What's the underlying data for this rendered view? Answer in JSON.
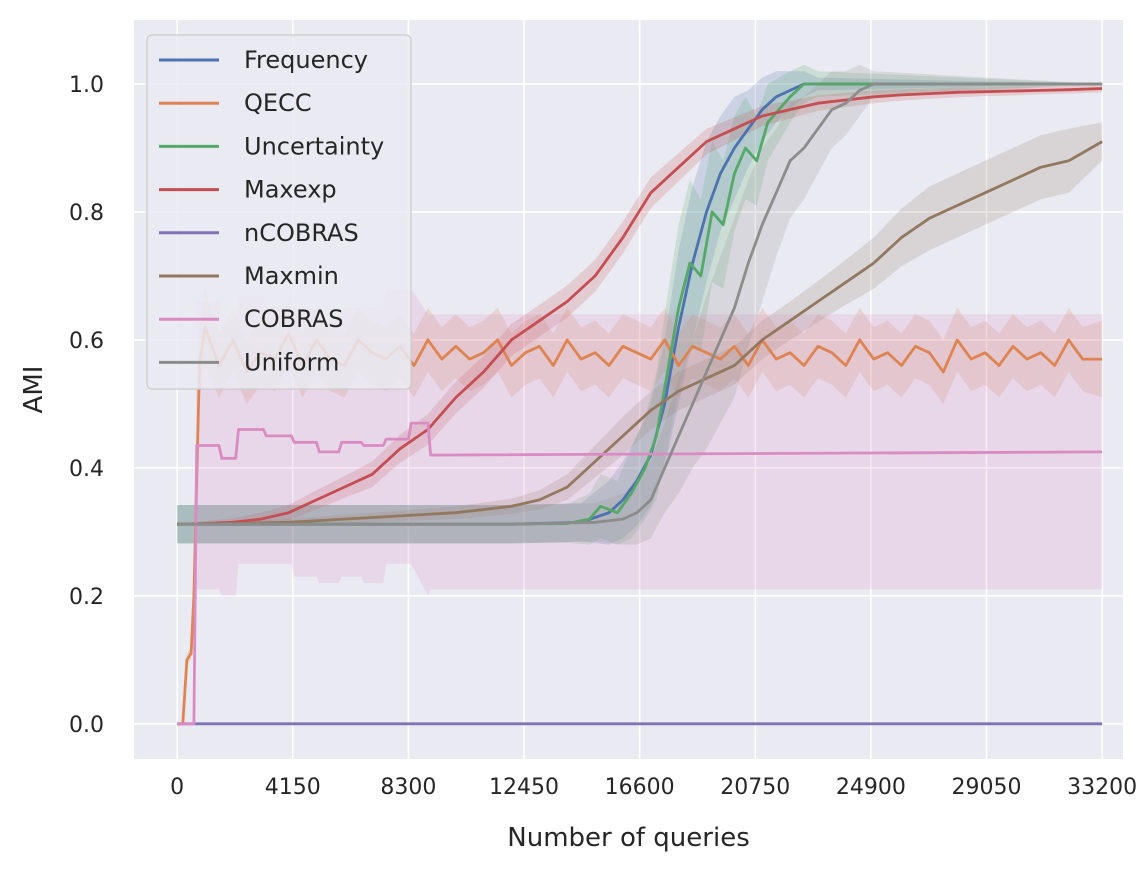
{
  "chart_data": {
    "type": "line",
    "title": "",
    "xlabel": "Number of queries",
    "ylabel": "AMI",
    "xlim": [
      -1550,
      33950
    ],
    "ylim": [
      -0.055,
      1.1
    ],
    "x_ticks": [
      0,
      4150,
      8300,
      12450,
      16600,
      20750,
      24900,
      29050,
      33200
    ],
    "y_ticks": [
      0.0,
      0.2,
      0.4,
      0.6,
      0.8,
      1.0
    ],
    "y_tick_labels": [
      "0.0",
      "0.2",
      "0.4",
      "0.6",
      "0.8",
      "1.0"
    ],
    "grid": true,
    "legend_position": "top-left",
    "colors": {
      "background": "#eaeaf2",
      "grid": "#ffffff"
    },
    "series": [
      {
        "name": "Frequency",
        "color": "#4c72b0",
        "x": [
          0,
          4000,
          8000,
          12000,
          14500,
          15500,
          16000,
          16500,
          17000,
          17500,
          18000,
          18500,
          19000,
          19500,
          20000,
          20500,
          21000,
          21500,
          22000,
          22500,
          23000,
          33200
        ],
        "y": [
          0.312,
          0.312,
          0.312,
          0.312,
          0.315,
          0.33,
          0.35,
          0.38,
          0.42,
          0.5,
          0.62,
          0.72,
          0.8,
          0.86,
          0.9,
          0.93,
          0.96,
          0.98,
          0.99,
          1.0,
          1.0,
          1.0
        ],
        "band": [
          0.03,
          0.03,
          0.03,
          0.03,
          0.03,
          0.05,
          0.06,
          0.07,
          0.08,
          0.1,
          0.12,
          0.12,
          0.11,
          0.09,
          0.08,
          0.06,
          0.05,
          0.04,
          0.03,
          0.02,
          0.01,
          0.0
        ]
      },
      {
        "name": "QECC",
        "color": "#dd8452",
        "x": [
          0,
          200,
          350,
          500,
          600,
          800,
          1000,
          1500,
          2000,
          2500,
          3000,
          3500,
          4000,
          4500,
          5000,
          5500,
          6000,
          6500,
          7000,
          7500,
          8000,
          8500,
          9000,
          9500,
          10000,
          10500,
          11000,
          11500,
          12000,
          12500,
          13000,
          13500,
          14000,
          14500,
          15000,
          15500,
          16000,
          16500,
          17000,
          17500,
          18000,
          18500,
          19000,
          19500,
          20000,
          20500,
          21000,
          21500,
          22000,
          22500,
          23000,
          23500,
          24000,
          24500,
          25000,
          25500,
          26000,
          26500,
          27000,
          27500,
          28000,
          28500,
          29000,
          29500,
          30000,
          30500,
          31000,
          31500,
          32000,
          32500,
          33200
        ],
        "y": [
          0.0,
          0.0,
          0.1,
          0.11,
          0.2,
          0.56,
          0.62,
          0.56,
          0.6,
          0.55,
          0.58,
          0.57,
          0.61,
          0.56,
          0.6,
          0.57,
          0.56,
          0.6,
          0.58,
          0.57,
          0.59,
          0.56,
          0.6,
          0.57,
          0.59,
          0.57,
          0.58,
          0.6,
          0.56,
          0.58,
          0.59,
          0.56,
          0.6,
          0.57,
          0.58,
          0.56,
          0.59,
          0.58,
          0.57,
          0.6,
          0.56,
          0.59,
          0.58,
          0.57,
          0.59,
          0.56,
          0.6,
          0.57,
          0.58,
          0.56,
          0.59,
          0.58,
          0.56,
          0.6,
          0.57,
          0.58,
          0.56,
          0.59,
          0.58,
          0.55,
          0.6,
          0.57,
          0.58,
          0.56,
          0.59,
          0.57,
          0.58,
          0.56,
          0.6,
          0.57,
          0.57
        ],
        "band": [
          0.0,
          0.0,
          0.01,
          0.01,
          0.03,
          0.05,
          0.06,
          0.05,
          0.05,
          0.05,
          0.05,
          0.05,
          0.05,
          0.05,
          0.05,
          0.05,
          0.05,
          0.05,
          0.05,
          0.05,
          0.05,
          0.05,
          0.05,
          0.05,
          0.05,
          0.05,
          0.05,
          0.05,
          0.05,
          0.05,
          0.05,
          0.05,
          0.05,
          0.05,
          0.05,
          0.05,
          0.05,
          0.05,
          0.05,
          0.05,
          0.05,
          0.05,
          0.05,
          0.05,
          0.05,
          0.05,
          0.05,
          0.05,
          0.05,
          0.05,
          0.05,
          0.05,
          0.05,
          0.05,
          0.05,
          0.05,
          0.05,
          0.05,
          0.05,
          0.05,
          0.05,
          0.05,
          0.05,
          0.05,
          0.05,
          0.05,
          0.05,
          0.05,
          0.05,
          0.05,
          0.06
        ]
      },
      {
        "name": "Uncertainty",
        "color": "#55a868",
        "x": [
          0,
          4000,
          8000,
          12000,
          14000,
          14800,
          15200,
          15800,
          16300,
          16800,
          17200,
          17600,
          18000,
          18400,
          18800,
          19200,
          19600,
          20000,
          20400,
          20800,
          21200,
          21600,
          22000,
          22500,
          23000,
          33200
        ],
        "y": [
          0.312,
          0.312,
          0.312,
          0.312,
          0.313,
          0.32,
          0.34,
          0.33,
          0.36,
          0.4,
          0.45,
          0.55,
          0.65,
          0.72,
          0.7,
          0.8,
          0.78,
          0.86,
          0.9,
          0.88,
          0.94,
          0.96,
          0.98,
          1.0,
          1.0,
          1.0
        ],
        "band": [
          0.03,
          0.03,
          0.03,
          0.03,
          0.03,
          0.04,
          0.05,
          0.05,
          0.07,
          0.08,
          0.1,
          0.12,
          0.13,
          0.13,
          0.12,
          0.11,
          0.1,
          0.09,
          0.08,
          0.07,
          0.06,
          0.05,
          0.04,
          0.03,
          0.02,
          0.0
        ]
      },
      {
        "name": "Maxexp",
        "color": "#c44e52",
        "x": [
          0,
          1000,
          2000,
          3000,
          4000,
          5000,
          6000,
          7000,
          8000,
          9000,
          10000,
          11000,
          12000,
          13000,
          14000,
          15000,
          16000,
          17000,
          18000,
          19000,
          20000,
          21000,
          22000,
          23000,
          24000,
          25000,
          26000,
          27000,
          28000,
          29000,
          30000,
          31000,
          32000,
          33200
        ],
        "y": [
          0.312,
          0.313,
          0.315,
          0.32,
          0.33,
          0.35,
          0.37,
          0.39,
          0.43,
          0.46,
          0.51,
          0.55,
          0.6,
          0.63,
          0.66,
          0.7,
          0.76,
          0.83,
          0.87,
          0.91,
          0.93,
          0.95,
          0.96,
          0.97,
          0.975,
          0.98,
          0.983,
          0.985,
          0.987,
          0.988,
          0.989,
          0.99,
          0.991,
          0.993
        ],
        "band": [
          0.0,
          0.004,
          0.006,
          0.01,
          0.012,
          0.015,
          0.017,
          0.02,
          0.022,
          0.024,
          0.025,
          0.025,
          0.025,
          0.025,
          0.025,
          0.025,
          0.025,
          0.024,
          0.022,
          0.02,
          0.018,
          0.016,
          0.014,
          0.012,
          0.011,
          0.01,
          0.009,
          0.008,
          0.008,
          0.007,
          0.007,
          0.006,
          0.006,
          0.006
        ]
      },
      {
        "name": "nCOBRAS",
        "color": "#8172b3",
        "x": [
          0,
          33200
        ],
        "y": [
          0.0,
          0.0
        ],
        "band": [
          0.0,
          0.0
        ]
      },
      {
        "name": "Maxmin",
        "color": "#937860",
        "x": [
          0,
          2000,
          4000,
          6000,
          8000,
          10000,
          12000,
          13000,
          14000,
          15000,
          16000,
          17000,
          18000,
          19000,
          20000,
          21000,
          22000,
          23000,
          24000,
          25000,
          26000,
          27000,
          28000,
          29000,
          30000,
          31000,
          32000,
          33200
        ],
        "y": [
          0.312,
          0.313,
          0.315,
          0.32,
          0.325,
          0.33,
          0.34,
          0.35,
          0.37,
          0.41,
          0.45,
          0.49,
          0.52,
          0.54,
          0.56,
          0.6,
          0.63,
          0.66,
          0.69,
          0.72,
          0.76,
          0.79,
          0.81,
          0.83,
          0.85,
          0.87,
          0.88,
          0.91
        ],
        "band": [
          0.0,
          0.003,
          0.005,
          0.007,
          0.008,
          0.01,
          0.012,
          0.015,
          0.02,
          0.025,
          0.03,
          0.03,
          0.03,
          0.03,
          0.03,
          0.03,
          0.03,
          0.032,
          0.035,
          0.04,
          0.045,
          0.05,
          0.05,
          0.05,
          0.05,
          0.05,
          0.05,
          0.03
        ]
      },
      {
        "name": "COBRAS",
        "color": "#da8bc3",
        "x": [
          0,
          600,
          700,
          1500,
          1600,
          2100,
          2200,
          3100,
          3200,
          4100,
          4200,
          5000,
          5100,
          5800,
          5900,
          6600,
          6700,
          7400,
          7500,
          8300,
          8400,
          9000,
          9100,
          33200
        ],
        "y": [
          0.0,
          0.0,
          0.435,
          0.435,
          0.415,
          0.415,
          0.46,
          0.46,
          0.45,
          0.45,
          0.44,
          0.44,
          0.425,
          0.425,
          0.44,
          0.44,
          0.435,
          0.435,
          0.445,
          0.445,
          0.47,
          0.47,
          0.42,
          0.425
        ],
        "band_low": [
          0.0,
          0.0,
          0.21,
          0.21,
          0.2,
          0.2,
          0.25,
          0.25,
          0.25,
          0.25,
          0.23,
          0.23,
          0.22,
          0.22,
          0.23,
          0.23,
          0.22,
          0.22,
          0.25,
          0.25,
          0.25,
          0.2,
          0.21,
          0.21
        ],
        "band_high": [
          0.0,
          0.0,
          0.66,
          0.66,
          0.63,
          0.63,
          0.67,
          0.67,
          0.65,
          0.65,
          0.65,
          0.65,
          0.63,
          0.63,
          0.65,
          0.65,
          0.65,
          0.65,
          0.68,
          0.68,
          0.68,
          0.64,
          0.64,
          0.64
        ]
      },
      {
        "name": "Uniform",
        "color": "#8c8c8c",
        "x": [
          0,
          4000,
          8000,
          12000,
          15000,
          16000,
          16500,
          17000,
          17500,
          18000,
          18500,
          19000,
          19500,
          20000,
          20500,
          21000,
          21500,
          22000,
          22500,
          23000,
          23500,
          24000,
          24500,
          25000,
          33200
        ],
        "y": [
          0.312,
          0.312,
          0.312,
          0.312,
          0.315,
          0.32,
          0.33,
          0.35,
          0.4,
          0.45,
          0.5,
          0.55,
          0.6,
          0.65,
          0.72,
          0.78,
          0.83,
          0.88,
          0.9,
          0.93,
          0.96,
          0.97,
          0.99,
          1.0,
          1.0
        ],
        "band": [
          0.03,
          0.03,
          0.03,
          0.03,
          0.03,
          0.04,
          0.05,
          0.06,
          0.07,
          0.09,
          0.1,
          0.12,
          0.13,
          0.14,
          0.13,
          0.12,
          0.1,
          0.09,
          0.08,
          0.07,
          0.06,
          0.05,
          0.04,
          0.02,
          0.0
        ]
      }
    ]
  }
}
